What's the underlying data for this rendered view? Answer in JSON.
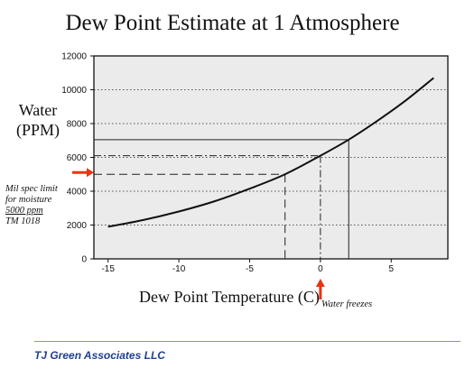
{
  "title": "Dew Point Estimate at 1 Atmosphere",
  "ylabel_line1": "Water",
  "ylabel_line2": "(PPM)",
  "xlabel": "Dew Point Temperature (C)",
  "note_mil_spec": {
    "line1": "Mil spec limit",
    "line2": "for moisture",
    "line3": "5000 ppm",
    "line4": "TM 1018"
  },
  "note_water_freezes": "Water freezes",
  "footer": "TJ Green Associates LLC",
  "colors": {
    "arrow": "#e8340f",
    "footer": "#1f3f8f",
    "plot_bg": "#ebebeb"
  },
  "chart_data": {
    "type": "line",
    "title": "Dew Point Estimate at 1 Atmosphere",
    "xlabel": "Dew Point Temperature (C)",
    "ylabel": "Water (PPM)",
    "xlim": [
      -16,
      9
    ],
    "ylim": [
      0,
      12000
    ],
    "x_ticks": [
      -15,
      -10,
      -5,
      0,
      5
    ],
    "y_ticks": [
      0,
      2000,
      4000,
      6000,
      8000,
      10000,
      12000
    ],
    "grid": "horizontal dotted",
    "series": [
      {
        "x": [
          -15,
          -12.5,
          -10,
          -7.5,
          -5,
          -2.5,
          0,
          2,
          4,
          6,
          8
        ],
        "y": [
          1900,
          2300,
          2800,
          3400,
          4150,
          5000,
          6100,
          7050,
          8150,
          9350,
          10700
        ]
      }
    ],
    "reference_lines": [
      {
        "y": 5000,
        "x": -2.5,
        "style": "dashed"
      },
      {
        "y": 6100,
        "x": 0,
        "style": "dash-dot"
      },
      {
        "y": 7050,
        "x": 2,
        "style": "solid"
      }
    ]
  }
}
